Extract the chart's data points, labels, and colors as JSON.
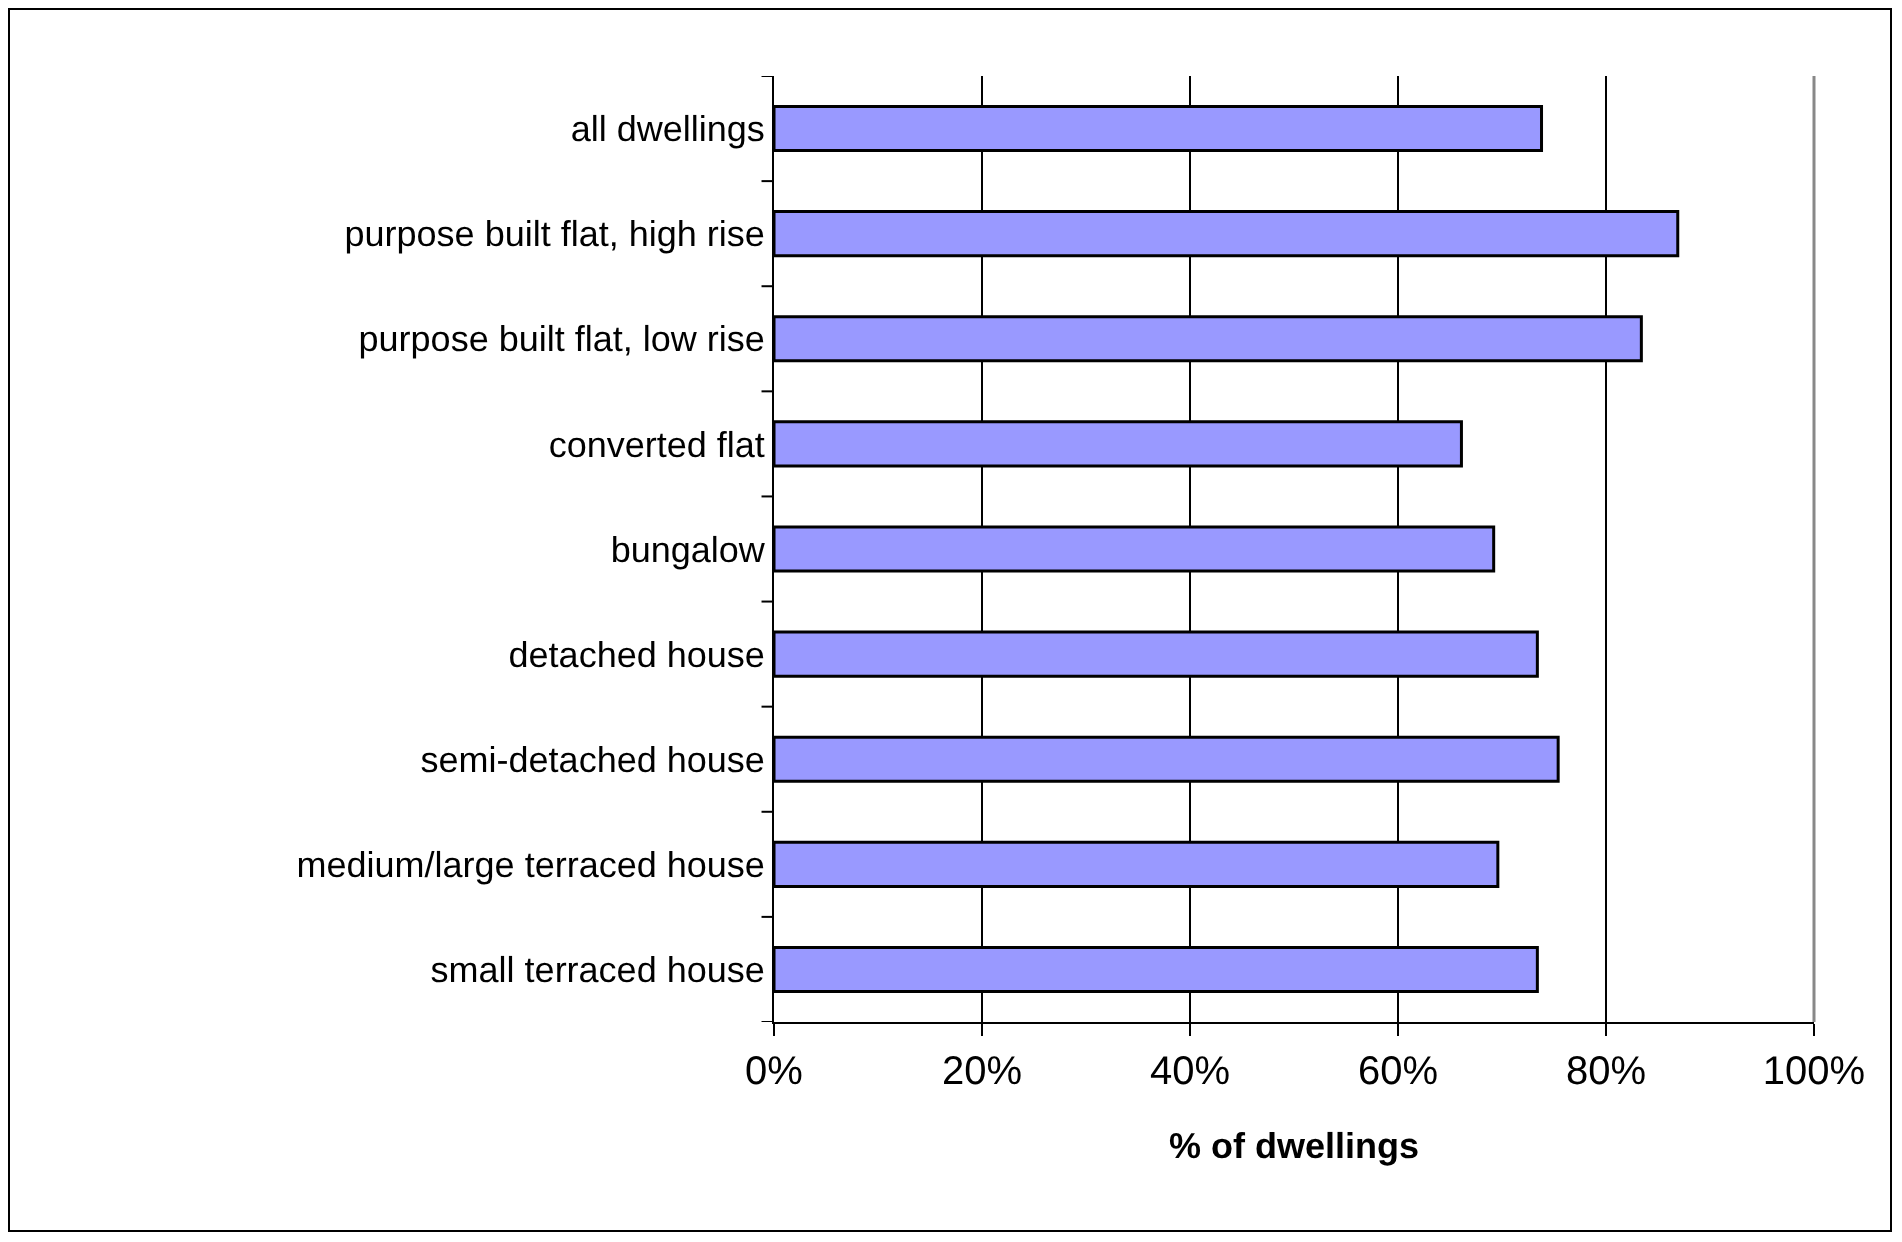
{
  "chart_data": {
    "type": "bar",
    "orientation": "horizontal",
    "xlabel": "% of dwellings",
    "categories": [
      "all dwellings",
      "purpose built flat, high rise",
      "purpose built flat, low rise",
      "converted flat",
      "bungalow",
      "detached house",
      "semi-detached house",
      "medium/large terraced house",
      "small terraced house"
    ],
    "values": [
      73.8,
      86.9,
      83.4,
      66.1,
      69.2,
      73.4,
      75.4,
      69.6,
      73.4
    ],
    "color": "#9999ff",
    "xlim": [
      0,
      100
    ],
    "xticks": [
      {
        "value": 0,
        "label": "0%"
      },
      {
        "value": 20,
        "label": "20%"
      },
      {
        "value": 40,
        "label": "40%"
      },
      {
        "value": 60,
        "label": "60%"
      },
      {
        "value": 80,
        "label": "80%"
      },
      {
        "value": 100,
        "label": "100%"
      }
    ],
    "grid": "x"
  }
}
